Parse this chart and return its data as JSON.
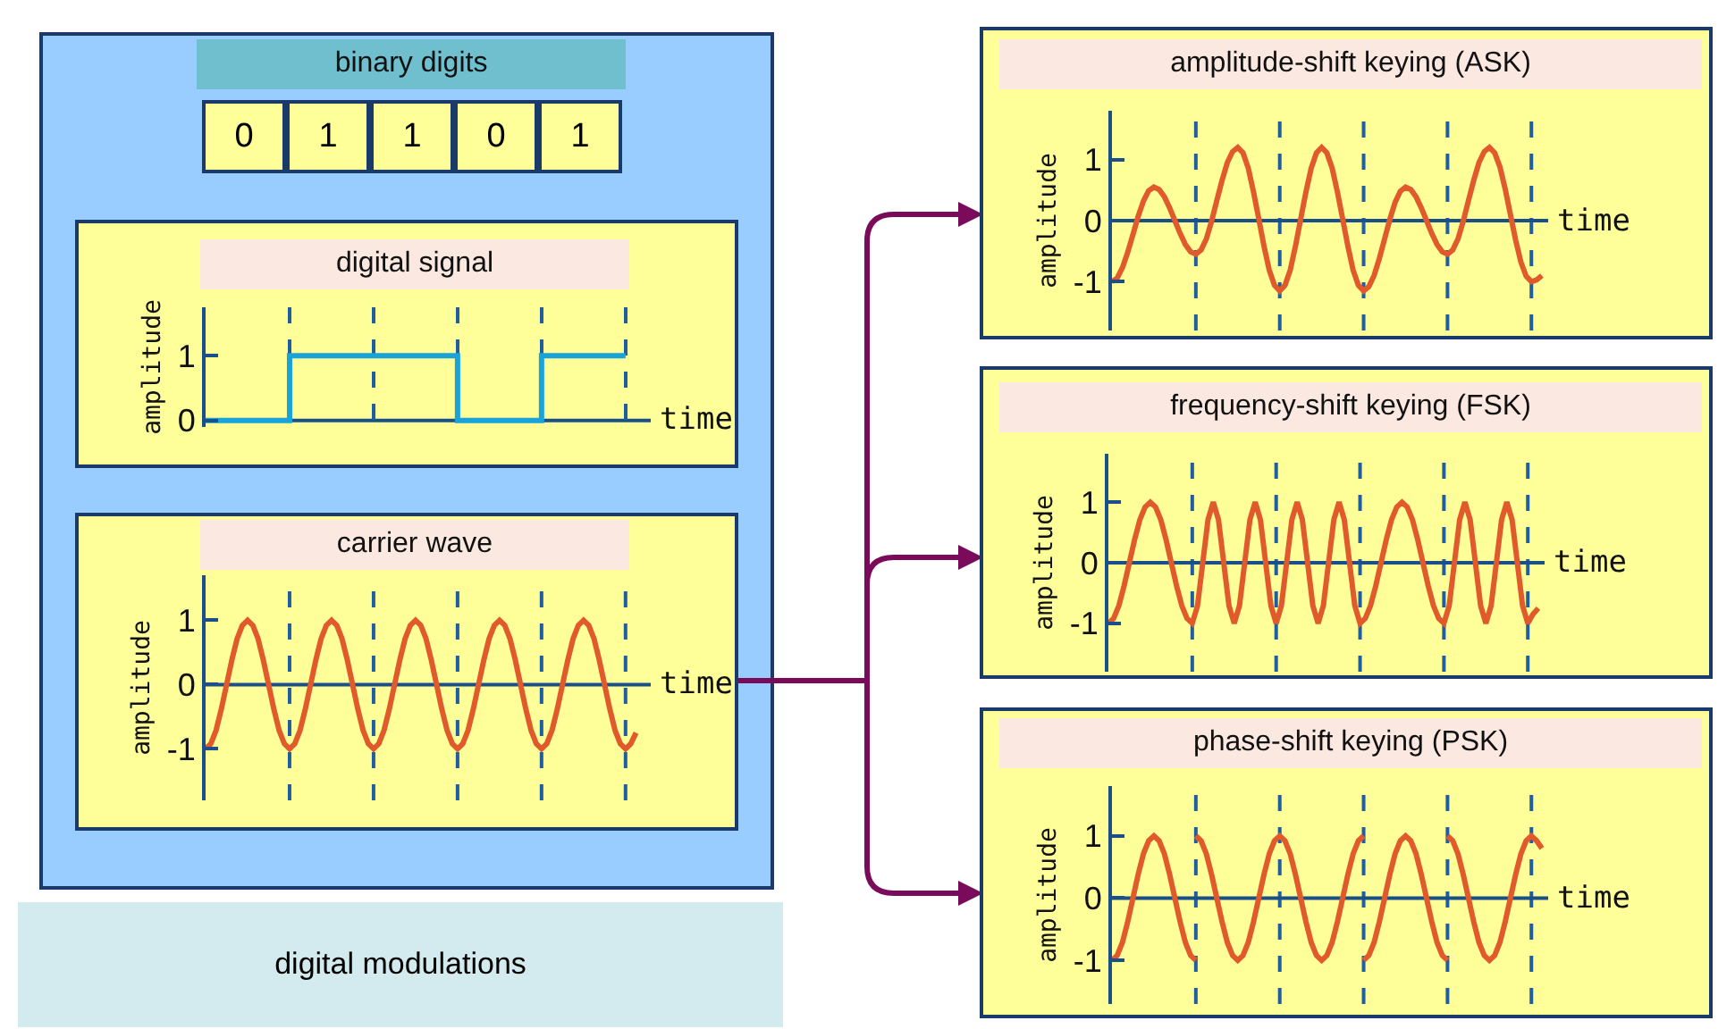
{
  "chart_data": [
    {
      "type": "other",
      "title": "binary digits",
      "categories": [
        "0",
        "1",
        "1",
        "0",
        "1"
      ]
    },
    {
      "type": "step",
      "title": "digital signal",
      "xlabel": "time",
      "ylabel": "amplitude",
      "categories": [
        null,
        null,
        null,
        null,
        null,
        null
      ],
      "ylim": [
        -0.1,
        1.75
      ],
      "yticks": [
        0,
        1
      ],
      "tick_labels": "y",
      "grid": "x",
      "series": [
        {
          "color": "#1aa3d9",
          "values": [
            0,
            1,
            1,
            0,
            1,
            1
          ]
        }
      ],
      "ref_lines": [
        {
          "axis": "y",
          "value": 0,
          "color": "#1a4f8a"
        }
      ]
    },
    {
      "type": "line",
      "title": "carrier wave",
      "xlabel": "time",
      "ylabel": "amplitude",
      "categories": [
        null,
        null,
        null,
        null,
        null,
        null,
        null,
        null,
        null,
        null,
        null,
        null,
        null,
        null,
        null,
        null,
        null,
        null,
        null,
        null,
        null,
        null,
        null,
        null,
        null,
        null,
        null,
        null,
        null,
        null,
        null,
        null,
        null,
        null,
        null,
        null,
        null,
        null,
        null,
        null,
        null,
        null,
        null,
        null,
        null,
        null,
        null,
        null,
        null,
        null,
        null,
        null,
        null,
        null,
        null,
        null,
        null,
        null,
        null,
        null,
        null,
        null,
        null,
        null,
        null,
        null,
        null,
        null,
        null,
        null,
        null,
        null,
        null,
        null,
        null,
        null,
        null,
        null,
        null,
        null,
        null,
        null,
        null
      ],
      "ylim": [
        -1.8,
        1.7
      ],
      "yticks": [
        -1,
        0,
        1
      ],
      "tick_labels": "y",
      "series": [
        {
          "color": "#e05a2b",
          "values": [
            -1,
            -0.92,
            -0.71,
            -0.38,
            0,
            0.38,
            0.71,
            0.92,
            1,
            0.92,
            0.71,
            0.38,
            0,
            -0.38,
            -0.71,
            -0.92,
            -1,
            -0.92,
            -0.71,
            -0.38,
            0,
            0.38,
            0.71,
            0.92,
            1,
            0.92,
            0.71,
            0.38,
            0,
            -0.38,
            -0.71,
            -0.92,
            -1,
            -0.92,
            -0.71,
            -0.38,
            0,
            0.38,
            0.71,
            0.92,
            1,
            0.92,
            0.71,
            0.38,
            0,
            -0.38,
            -0.71,
            -0.92,
            -1,
            -0.92,
            -0.71,
            -0.38,
            0,
            0.38,
            0.71,
            0.92,
            1,
            0.92,
            0.71,
            0.38,
            0,
            -0.38,
            -0.71,
            -0.92,
            -1,
            -0.92,
            -0.71,
            -0.38,
            0,
            0.38,
            0.71,
            0.92,
            1,
            0.92,
            0.71,
            0.38,
            0,
            -0.38,
            -0.71,
            -0.92,
            -1,
            -0.92,
            -0.75
          ]
        }
      ],
      "ref_lines": [
        {
          "axis": "y",
          "value": 0,
          "color": "#1a4f8a"
        }
      ]
    },
    {
      "type": "line",
      "title": "amplitude-shift keying  (ASK)",
      "xlabel": "time",
      "ylabel": "amplitude",
      "categories": [
        null,
        null,
        null,
        null,
        null,
        null,
        null,
        null,
        null,
        null,
        null,
        null,
        null,
        null,
        null,
        null,
        null,
        null,
        null,
        null,
        null,
        null,
        null,
        null,
        null,
        null,
        null,
        null,
        null,
        null,
        null,
        null,
        null,
        null,
        null,
        null,
        null,
        null,
        null,
        null,
        null,
        null,
        null,
        null,
        null,
        null,
        null,
        null,
        null,
        null,
        null,
        null,
        null,
        null,
        null,
        null,
        null,
        null,
        null,
        null,
        null,
        null,
        null,
        null,
        null,
        null,
        null,
        null,
        null,
        null,
        null,
        null,
        null,
        null,
        null,
        null,
        null,
        null,
        null,
        null,
        null,
        null,
        null
      ],
      "ylim": [
        -1.8,
        1.8
      ],
      "yticks": [
        -1,
        0,
        1
      ],
      "tick_labels": "y",
      "series": [
        {
          "color": "#e05a2b",
          "values": [
            -1,
            -0.94,
            -0.77,
            -0.52,
            -0.23,
            0.07,
            0.32,
            0.49,
            0.55,
            0.51,
            0.39,
            0.21,
            0,
            -0.21,
            -0.39,
            -0.51,
            -0.55,
            -0.48,
            -0.3,
            -0.01,
            0.33,
            0.66,
            0.95,
            1.13,
            1.2,
            1.11,
            0.86,
            0.47,
            0.03,
            -0.42,
            -0.81,
            -1.06,
            -1.15,
            -1.06,
            -0.81,
            -0.42,
            0.03,
            0.47,
            0.86,
            1.11,
            1.2,
            1.11,
            0.86,
            0.47,
            0.03,
            -0.42,
            -0.81,
            -1.06,
            -1.15,
            -1.08,
            -0.9,
            -0.62,
            -0.3,
            0.02,
            0.3,
            0.48,
            0.55,
            0.51,
            0.39,
            0.21,
            0,
            -0.21,
            -0.39,
            -0.51,
            -0.55,
            -0.48,
            -0.3,
            -0.01,
            0.33,
            0.66,
            0.95,
            1.13,
            1.2,
            1.11,
            0.88,
            0.52,
            0.1,
            -0.32,
            -0.68,
            -0.91,
            -1,
            -0.97,
            -0.9
          ]
        }
      ],
      "ref_lines": [
        {
          "axis": "y",
          "value": 0,
          "color": "#1a4f8a"
        }
      ]
    },
    {
      "type": "line",
      "title": "frequency-shift keying  (FSK)",
      "xlabel": "time",
      "ylabel": "amplitude",
      "categories": [
        null,
        null,
        null,
        null,
        null,
        null,
        null,
        null,
        null,
        null,
        null,
        null,
        null,
        null,
        null,
        null,
        null,
        null,
        null,
        null,
        null,
        null,
        null,
        null,
        null,
        null,
        null,
        null,
        null,
        null,
        null,
        null,
        null,
        null,
        null,
        null,
        null,
        null,
        null,
        null,
        null,
        null,
        null,
        null,
        null,
        null,
        null,
        null,
        null,
        null,
        null,
        null,
        null,
        null,
        null,
        null,
        null,
        null,
        null,
        null,
        null,
        null,
        null,
        null,
        null,
        null,
        null,
        null,
        null,
        null,
        null,
        null,
        null,
        null,
        null,
        null,
        null,
        null,
        null,
        null,
        null,
        null,
        null
      ],
      "ylim": [
        -1.8,
        1.8
      ],
      "yticks": [
        -1,
        0,
        1
      ],
      "tick_labels": "y",
      "series": [
        {
          "color": "#e05a2b",
          "values": [
            -1,
            -0.92,
            -0.71,
            -0.38,
            0,
            0.38,
            0.71,
            0.92,
            1,
            0.92,
            0.71,
            0.38,
            0,
            -0.38,
            -0.71,
            -0.92,
            -1,
            -0.71,
            0,
            0.71,
            1,
            0.71,
            0,
            -0.71,
            -1,
            -0.71,
            0,
            0.71,
            1,
            0.71,
            0,
            -0.71,
            -1,
            -0.71,
            0,
            0.71,
            1,
            0.71,
            0,
            -0.71,
            -1,
            -0.71,
            0,
            0.71,
            1,
            0.71,
            0,
            -0.71,
            -1,
            -0.92,
            -0.71,
            -0.38,
            0,
            0.38,
            0.71,
            0.92,
            1,
            0.92,
            0.71,
            0.38,
            0,
            -0.38,
            -0.71,
            -0.92,
            -1,
            -0.71,
            0,
            0.71,
            1,
            0.71,
            0,
            -0.71,
            -1,
            -0.71,
            0,
            0.71,
            1,
            0.71,
            0,
            -0.71,
            -1,
            -0.85,
            -0.75
          ]
        }
      ],
      "ref_lines": [
        {
          "axis": "y",
          "value": 0,
          "color": "#1a4f8a"
        }
      ]
    },
    {
      "type": "line",
      "title": "phase-shift keying  (PSK)",
      "xlabel": "time",
      "ylabel": "amplitude",
      "categories": [
        null,
        null,
        null,
        null,
        null,
        null,
        null,
        null,
        null,
        null,
        null,
        null,
        null,
        null,
        null,
        null,
        null,
        null,
        null,
        null,
        null,
        null,
        null,
        null,
        null,
        null,
        null,
        null,
        null,
        null,
        null,
        null,
        null,
        null,
        null,
        null,
        null,
        null,
        null,
        null,
        null,
        null,
        null,
        null,
        null,
        null,
        null,
        null,
        null,
        null,
        null,
        null,
        null,
        null,
        null,
        null,
        null,
        null,
        null,
        null,
        null,
        null,
        null,
        null,
        null,
        null,
        null,
        null,
        null,
        null,
        null,
        null,
        null,
        null,
        null,
        null,
        null,
        null,
        null,
        null,
        null,
        null,
        null
      ],
      "ylim": [
        -1.7,
        1.8
      ],
      "yticks": [
        -1,
        0,
        1
      ],
      "tick_labels": "y",
      "series": [
        {
          "color": "#e05a2b",
          "values": [
            -1,
            -0.92,
            -0.71,
            -0.38,
            0,
            0.38,
            0.71,
            0.92,
            1,
            0.92,
            0.71,
            0.38,
            0,
            -0.38,
            -0.71,
            -0.92,
            -1,
            null,
            null,
            null,
            null,
            null,
            null,
            null,
            null,
            null,
            null,
            null,
            null,
            null,
            null,
            null,
            null,
            null,
            null,
            null,
            null,
            null,
            null,
            null,
            null,
            null,
            null,
            null,
            null,
            null,
            null,
            null,
            -1,
            -0.92,
            -0.71,
            -0.38,
            0,
            0.38,
            0.71,
            0.92,
            1,
            0.92,
            0.71,
            0.38,
            0,
            -0.38,
            -0.71,
            -0.92,
            -1,
            null,
            null,
            null,
            null,
            null,
            null,
            null,
            null,
            null,
            null,
            null,
            null,
            null,
            null,
            null,
            null,
            null,
            null
          ]
        },
        {
          "color": "#e05a2b",
          "values": [
            null,
            null,
            null,
            null,
            null,
            null,
            null,
            null,
            null,
            null,
            null,
            null,
            null,
            null,
            null,
            null,
            1,
            0.92,
            0.71,
            0.38,
            0,
            -0.38,
            -0.71,
            -0.92,
            -1,
            -0.92,
            -0.71,
            -0.38,
            0,
            0.38,
            0.71,
            0.92,
            1,
            0.92,
            0.71,
            0.38,
            0,
            -0.38,
            -0.71,
            -0.92,
            -1,
            -0.92,
            -0.71,
            -0.38,
            0,
            0.38,
            0.71,
            0.92,
            1,
            null,
            null,
            null,
            null,
            null,
            null,
            null,
            null,
            null,
            null,
            null,
            null,
            null,
            null,
            null,
            1,
            0.92,
            0.71,
            0.38,
            0,
            -0.38,
            -0.71,
            -0.92,
            -1,
            -0.92,
            -0.71,
            -0.38,
            0,
            0.38,
            0.71,
            0.92,
            1,
            0.92,
            0.8
          ]
        }
      ],
      "ref_lines": [
        {
          "axis": "y",
          "value": 0,
          "color": "#1a4f8a"
        }
      ]
    },
    {
      "type": "other",
      "title": "digital modulations"
    }
  ]
}
